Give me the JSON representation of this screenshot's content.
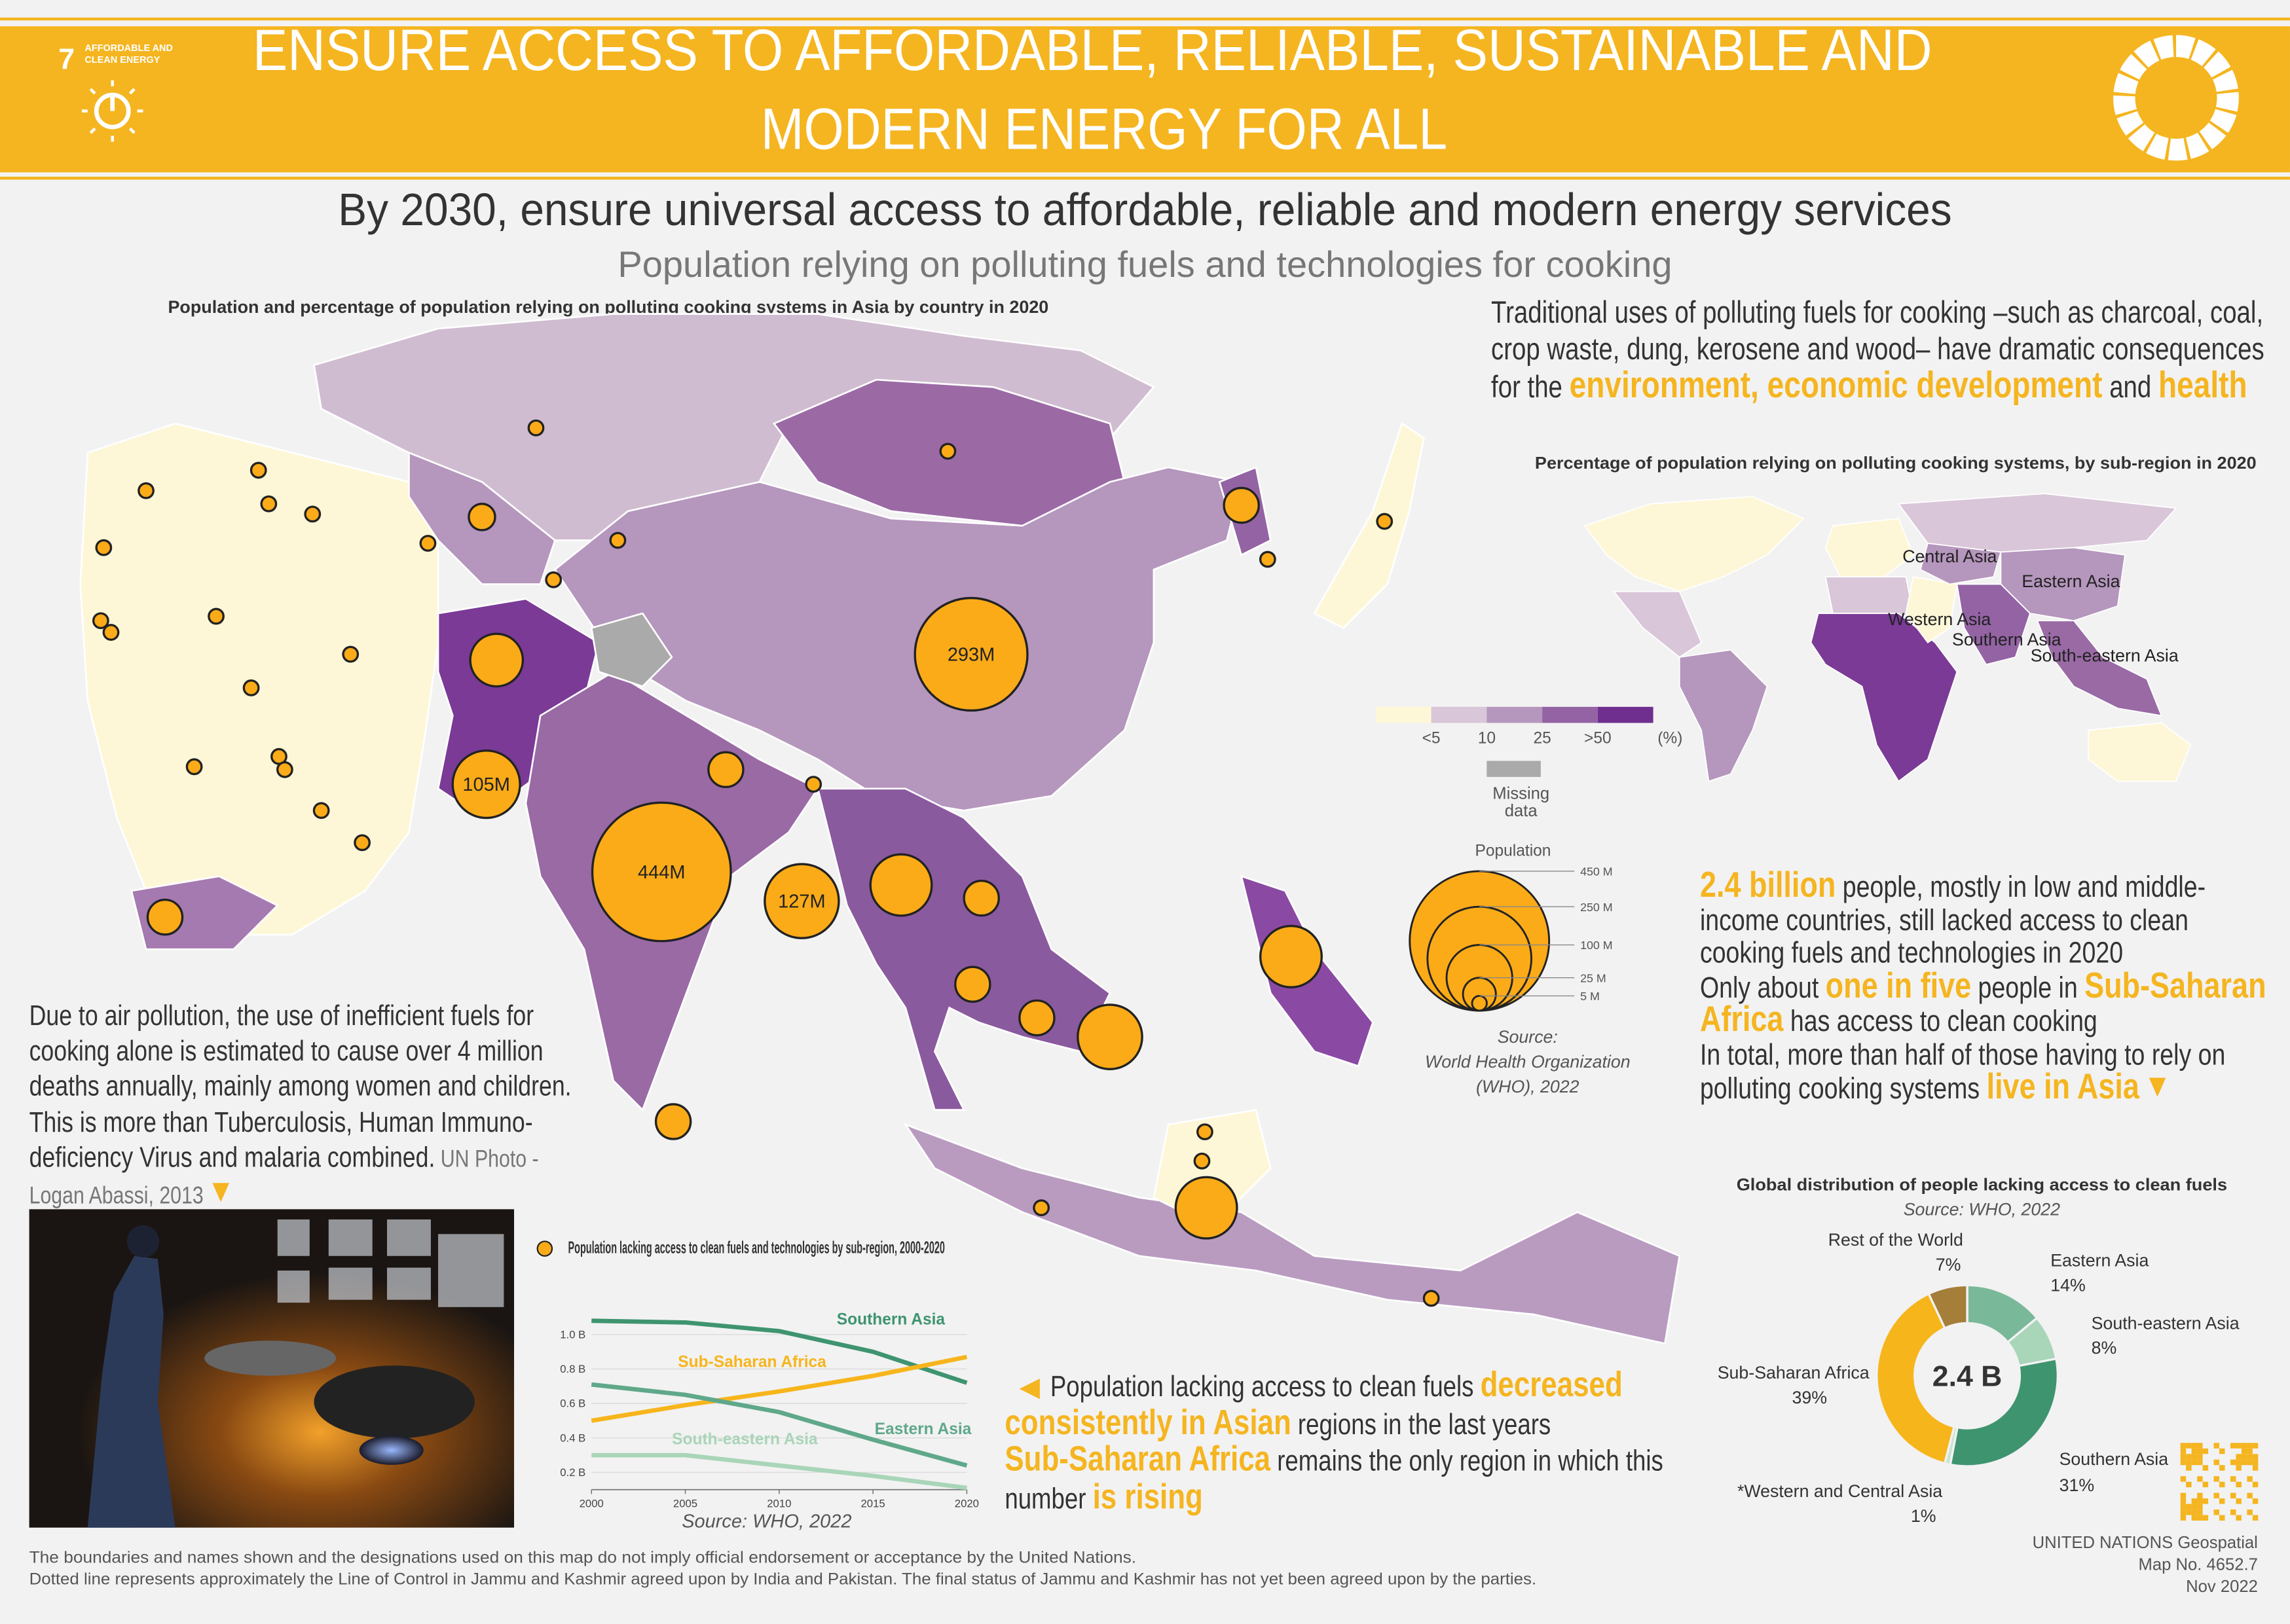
{
  "header": {
    "goal_number": "7",
    "goal_name": [
      "AFFORDABLE AND",
      "CLEAN ENERGY"
    ],
    "title": [
      "ENSURE ACCESS TO AFFORDABLE, RELIABLE, SUSTAINABLE AND",
      "MODERN ENERGY FOR ALL"
    ]
  },
  "target": "By 2030, ensure universal access to affordable, reliable and modern energy services",
  "subtitle": "Population relying on polluting fuels and technologies for cooking",
  "map": {
    "title": "Population and percentage of population relying on polluting cooking systems in Asia by country in 2020",
    "bubble_values": [
      293,
      444,
      105,
      127,
      64,
      87,
      87,
      96,
      87,
      28,
      28,
      28,
      28,
      28,
      28,
      28,
      16,
      5,
      5,
      5,
      5,
      5,
      5,
      5,
      5,
      5,
      5,
      5,
      5,
      5,
      5,
      5,
      5,
      5,
      5,
      5,
      5,
      5,
      5,
      5,
      5,
      5,
      5,
      5
    ],
    "value_labels": [
      "293M",
      "444M",
      "105M",
      "127M",
      null,
      null,
      null,
      null,
      null,
      null,
      null,
      null,
      null,
      null,
      null,
      null,
      null,
      null,
      null,
      null,
      null,
      null,
      null,
      null,
      null,
      null,
      null,
      null,
      null,
      null,
      null,
      null,
      null,
      null,
      null,
      null,
      null,
      null,
      null,
      null,
      null,
      null,
      null,
      null
    ],
    "bubble_color": "#fbab18"
  },
  "legend": {
    "labels": [
      "<5",
      "10",
      "25",
      ">50"
    ],
    "unit": "(%)",
    "colors": [
      "#fdf7d7",
      "#d9c6d8",
      "#b596bd",
      "#9363a4",
      "#6f2f8f"
    ],
    "missing": "Missing data",
    "population_title": "Population",
    "population_ticks": [
      {
        "value": 450,
        "label": "450 M"
      },
      {
        "value": 250,
        "label": "250 M"
      },
      {
        "value": 100,
        "label": "100 M"
      },
      {
        "value": 25,
        "label": "25 M"
      },
      {
        "value": 5,
        "label": "5 M"
      }
    ],
    "source": [
      "Source:",
      "World Health Organization",
      "(WHO), 2022"
    ]
  },
  "intro": [
    "Traditional uses of polluting fuels for cooking –such as charcoal, coal, crop waste, dung, kerosene and wood– have dramatic consequences for the ",
    "environment, economic development",
    " and ",
    "health"
  ],
  "world_map": {
    "title": "Percentage of population relying on polluting cooking systems, by sub-region in 2020",
    "regions": [
      "Central Asia",
      "Eastern Asia",
      "Western Asia",
      "Southern Asia",
      "South-eastern Asia"
    ]
  },
  "facts": [
    [
      "2.4 billion",
      " people, mostly in low and middle-income countries, still lacked access to clean cooking fuels and technologies in 2020"
    ],
    [
      "Only about ",
      "one in five",
      " people in ",
      "Sub-Saharan Africa",
      " has access to clean cooking"
    ],
    [
      "In total, ",
      "more than half",
      " of those having to rely on polluting cooking systems ",
      "live in Asia"
    ]
  ],
  "pollution": [
    "Due to air pollution, the use of inefficient fuels for cooking alone is estimated to cause over 4 million deaths annually, mainly among women and children. This is more than Tuberculosis, Human Immuno-deficiency Virus and malaria combined.",
    " UN Photo - Logan Abassi, 2013"
  ],
  "trend_text": [
    [
      "Population lacking access to clean fuels ",
      "decreased consistently in Asian",
      " regions in the last years"
    ],
    [
      "Sub-Saharan Africa",
      " remains the only region in which this number ",
      "is rising"
    ]
  ],
  "chart_data": [
    {
      "type": "line",
      "title": "Population lacking access to clean fuels and technologies by sub-region, 2000-2020",
      "source": "Source: WHO, 2022",
      "x": [
        2000,
        2005,
        2010,
        2015,
        2020
      ],
      "xlim": [
        2000,
        2020
      ],
      "xticks": [
        2000,
        2005,
        2010,
        2015,
        2020
      ],
      "ylim": [
        0.1,
        1.1
      ],
      "yticks": [
        {
          "value": 0.2,
          "label": "0.2 B"
        },
        {
          "value": 0.4,
          "label": "0.4 B"
        },
        {
          "value": 0.6,
          "label": "0.6 B"
        },
        {
          "value": 0.8,
          "label": "0.8 B"
        },
        {
          "value": 1.0,
          "label": "1.0 B"
        }
      ],
      "grid": true,
      "series": [
        {
          "name": "Southern Asia",
          "color": "#3f9470",
          "values": [
            1.08,
            1.07,
            1.02,
            0.9,
            0.72
          ]
        },
        {
          "name": "Sub-Saharan Africa",
          "color": "#f7b51c",
          "values": [
            0.5,
            0.59,
            0.67,
            0.76,
            0.87
          ]
        },
        {
          "name": "Eastern Asia",
          "color": "#5fa88a",
          "values": [
            0.71,
            0.65,
            0.55,
            0.39,
            0.24
          ]
        },
        {
          "name": "South-eastern Asia",
          "color": "#a9d5b8",
          "values": [
            0.3,
            0.3,
            0.24,
            0.18,
            0.11
          ]
        }
      ]
    },
    {
      "type": "pie",
      "title": "Global distribution of people lacking access to clean fuels",
      "source": "Source: WHO, 2022",
      "center_label": "2.4 B",
      "categories": [
        "Eastern Asia",
        "South-eastern Asia",
        "Southern Asia",
        "*Western and Central Asia",
        "Sub-Saharan Africa",
        "Rest of the World"
      ],
      "values": [
        14,
        8,
        31,
        1,
        39,
        7
      ],
      "value_labels": [
        "14%",
        "8%",
        "31%",
        "1%",
        "39%",
        "7%"
      ],
      "colors": [
        "#7ab89a",
        "#a9d5b8",
        "#3f9470",
        "#c9e4d3",
        "#f7b51c",
        "#a57e3a"
      ]
    }
  ],
  "footer": {
    "disclaimer": [
      "The boundaries and names shown and the designations used on this map do not imply official endorsement or acceptance by the United Nations.",
      "Dotted line represents approximately the Line of Control in Jammu and Kashmir agreed upon by India and Pakistan. The final status of Jammu and Kashmir has not yet been agreed upon by the parties."
    ],
    "credit": [
      "UNITED NATIONS Geospatial",
      "Map No. 4652.7",
      "Nov 2022"
    ]
  }
}
